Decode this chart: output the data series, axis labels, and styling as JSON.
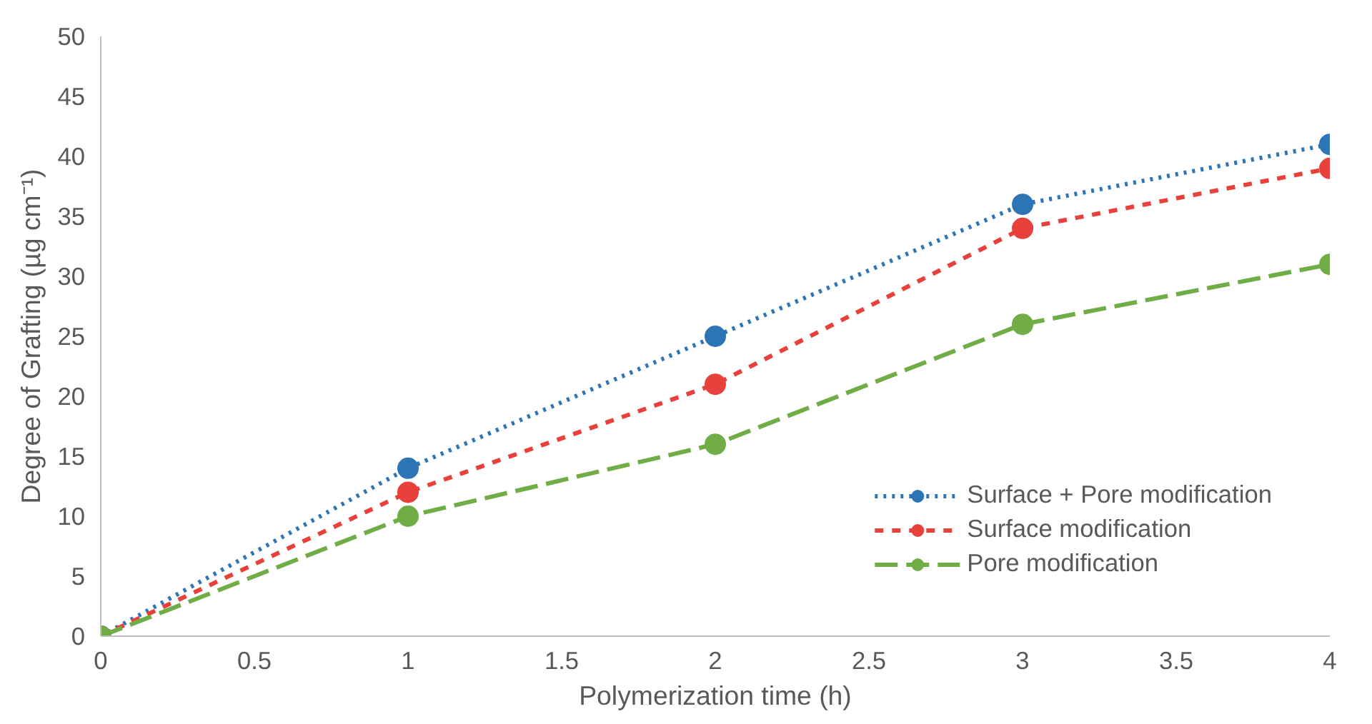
{
  "chart_data": {
    "type": "line",
    "xlabel": "Polymerization time (h)",
    "ylabel": "Degree of Grafting (µg cm⁻¹)",
    "x": [
      0,
      1,
      2,
      3,
      4
    ],
    "series": [
      {
        "name": "Surface + Pore modification",
        "color": "#2e75b6",
        "line_style": "dotted",
        "values": [
          0,
          14,
          25,
          36,
          41
        ]
      },
      {
        "name": "Surface modification",
        "color": "#e8413b",
        "line_style": "dashed",
        "values": [
          0,
          12,
          21,
          34,
          39
        ]
      },
      {
        "name": "Pore modification",
        "color": "#70ad47",
        "line_style": "dashed",
        "values": [
          0,
          10,
          16,
          26,
          31
        ]
      }
    ],
    "xlim": [
      0,
      4
    ],
    "xticks": [
      0,
      0.5,
      1,
      1.5,
      2,
      2.5,
      3,
      3.5,
      4
    ],
    "ylim": [
      0,
      50
    ],
    "yticks": [
      0,
      5,
      10,
      15,
      20,
      25,
      30,
      35,
      40,
      45,
      50
    ],
    "grid": false,
    "legend": "bottom right",
    "marker": "circle"
  }
}
